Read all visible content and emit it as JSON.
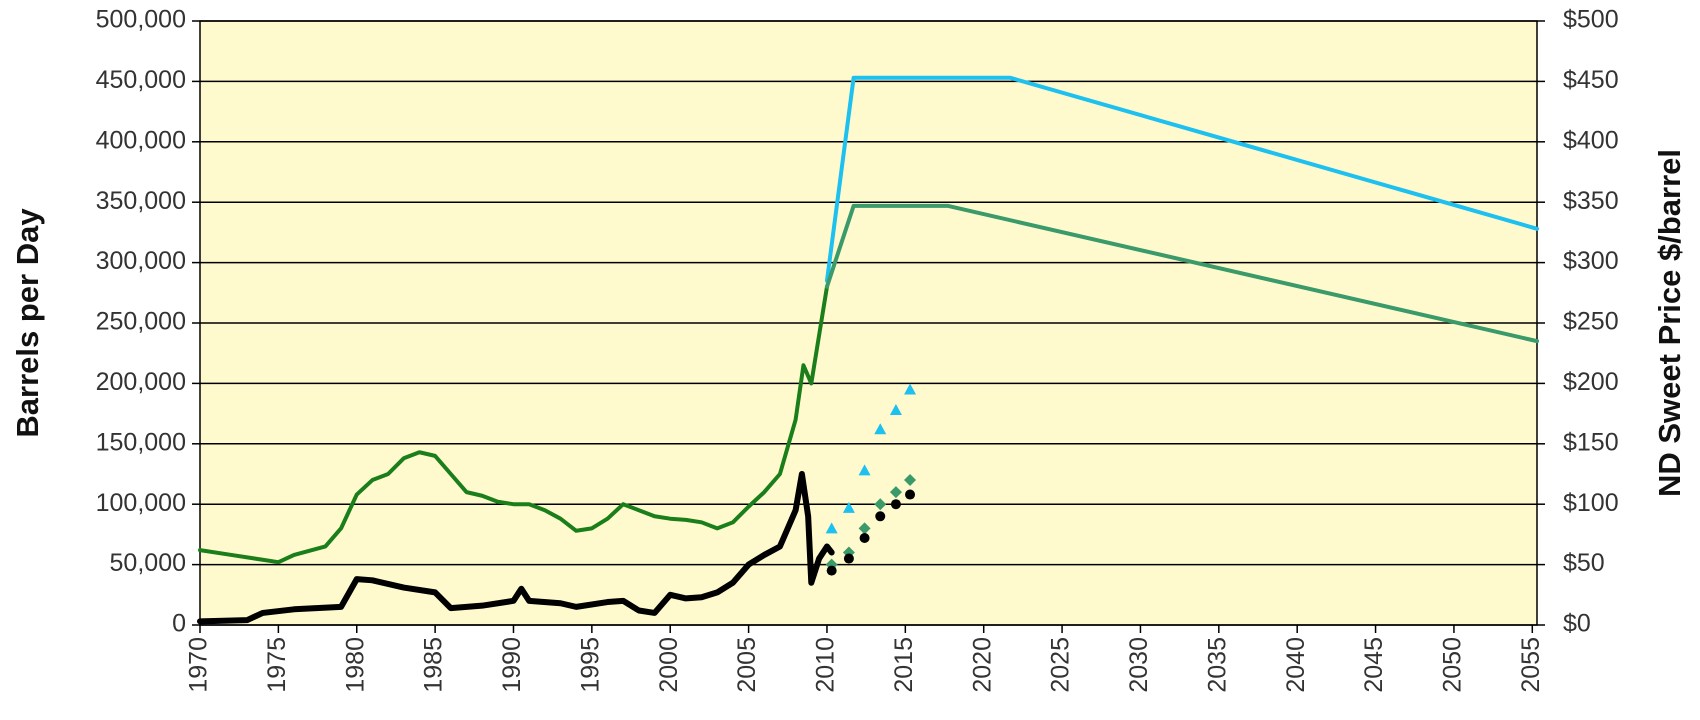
{
  "chart_data": {
    "type": "line",
    "y_axis_label": "Barrels per Day",
    "y2_axis_label": "ND Sweet Price $/barrel",
    "background": "#fffacd",
    "grid": true,
    "xlim": [
      1970,
      2055.3
    ],
    "xticks": [
      1970,
      1975,
      1980,
      1985,
      1990,
      1995,
      2000,
      2005,
      2010,
      2015,
      2020,
      2025,
      2030,
      2035,
      2040,
      2045,
      2050,
      2055
    ],
    "ylim": [
      0,
      500000
    ],
    "yticks": [
      {
        "value": 0,
        "label": "0"
      },
      {
        "value": 50000,
        "label": "50,000"
      },
      {
        "value": 100000,
        "label": "100,000"
      },
      {
        "value": 150000,
        "label": "150,000"
      },
      {
        "value": 200000,
        "label": "200,000"
      },
      {
        "value": 250000,
        "label": "250,000"
      },
      {
        "value": 300000,
        "label": "300,000"
      },
      {
        "value": 350000,
        "label": "350,000"
      },
      {
        "value": 400000,
        "label": "400,000"
      },
      {
        "value": 450000,
        "label": "450,000"
      },
      {
        "value": 500000,
        "label": "500,000"
      }
    ],
    "y2lim": [
      0,
      500
    ],
    "y2ticks": [
      {
        "value": 0,
        "label": "$0"
      },
      {
        "value": 50,
        "label": "$50"
      },
      {
        "value": 100,
        "label": "$100"
      },
      {
        "value": 150,
        "label": "$150"
      },
      {
        "value": 200,
        "label": "$200"
      },
      {
        "value": 250,
        "label": "$250"
      },
      {
        "value": 300,
        "label": "$300"
      },
      {
        "value": 350,
        "label": "$350"
      },
      {
        "value": 400,
        "label": "$400"
      },
      {
        "value": 450,
        "label": "$450"
      },
      {
        "value": 500,
        "label": "$500"
      }
    ],
    "series": [
      {
        "style": "line",
        "color": "#1a7f1a",
        "axis": "y",
        "x": [
          1970,
          1972,
          1974,
          1975,
          1976,
          1978,
          1979,
          1980,
          1981,
          1982,
          1983,
          1984,
          1985,
          1986,
          1987,
          1988,
          1989,
          1990,
          1991,
          1992,
          1993,
          1994,
          1995,
          1996,
          1997,
          1998,
          1999,
          2000,
          2001,
          2002,
          2003,
          2004,
          2005,
          2006,
          2007,
          2008,
          2008.5,
          2009,
          2009.5,
          2010
        ],
        "values": [
          62000,
          58000,
          54000,
          52000,
          58000,
          65000,
          80000,
          108000,
          120000,
          125000,
          138000,
          143000,
          140000,
          125000,
          110000,
          107000,
          102000,
          100000,
          100000,
          95000,
          88000,
          78000,
          80000,
          88000,
          100000,
          95000,
          90000,
          88000,
          87000,
          85000,
          80000,
          85000,
          98000,
          110000,
          125000,
          170000,
          215000,
          200000,
          240000,
          280000
        ]
      },
      {
        "style": "line",
        "color": "#000000",
        "axis": "y2",
        "x": [
          1970,
          1973,
          1974,
          1976,
          1979,
          1980,
          1981,
          1983,
          1985,
          1986,
          1988,
          1990,
          1990.5,
          1991,
          1993,
          1994,
          1996,
          1997,
          1998,
          1999,
          2000,
          2001,
          2002,
          2003,
          2004,
          2005,
          2006,
          2007,
          2008,
          2008.4,
          2008.8,
          2009,
          2009.5,
          2010,
          2010.3
        ],
        "values": [
          3,
          4,
          10,
          13,
          15,
          38,
          37,
          31,
          27,
          14,
          16,
          20,
          30,
          20,
          18,
          15,
          19,
          20,
          12,
          10,
          25,
          22,
          23,
          27,
          35,
          50,
          58,
          65,
          95,
          125,
          90,
          35,
          55,
          65,
          60
        ]
      },
      {
        "style": "line",
        "color": "#1ec0f0",
        "axis": "y",
        "x": [
          2010,
          2011.7,
          2021.7,
          2055.3
        ],
        "values": [
          285000,
          453000,
          453000,
          328000
        ]
      },
      {
        "style": "line",
        "color": "#3a9a6a",
        "axis": "y",
        "x": [
          2010,
          2011.7,
          2017.7,
          2055.3
        ],
        "values": [
          280000,
          347000,
          347000,
          235000
        ]
      },
      {
        "style": "scatter",
        "marker": "triangle",
        "color": "#1ec0f0",
        "axis": "y",
        "x": [
          2010.3,
          2011.4,
          2012.4,
          2013.4,
          2014.4,
          2015.3
        ],
        "values": [
          80000,
          97000,
          128000,
          162000,
          178000,
          195000
        ]
      },
      {
        "style": "scatter",
        "marker": "diamond",
        "color": "#3a9a6a",
        "axis": "y",
        "x": [
          2010.3,
          2011.4,
          2012.4,
          2013.4,
          2014.4,
          2015.3
        ],
        "values": [
          50000,
          60000,
          80000,
          100000,
          110000,
          120000
        ]
      },
      {
        "style": "scatter",
        "marker": "circle",
        "color": "#000000",
        "axis": "y2",
        "x": [
          2010.3,
          2011.4,
          2012.4,
          2013.4,
          2014.4,
          2015.3
        ],
        "values": [
          45,
          55,
          72,
          90,
          100,
          108
        ]
      }
    ]
  }
}
